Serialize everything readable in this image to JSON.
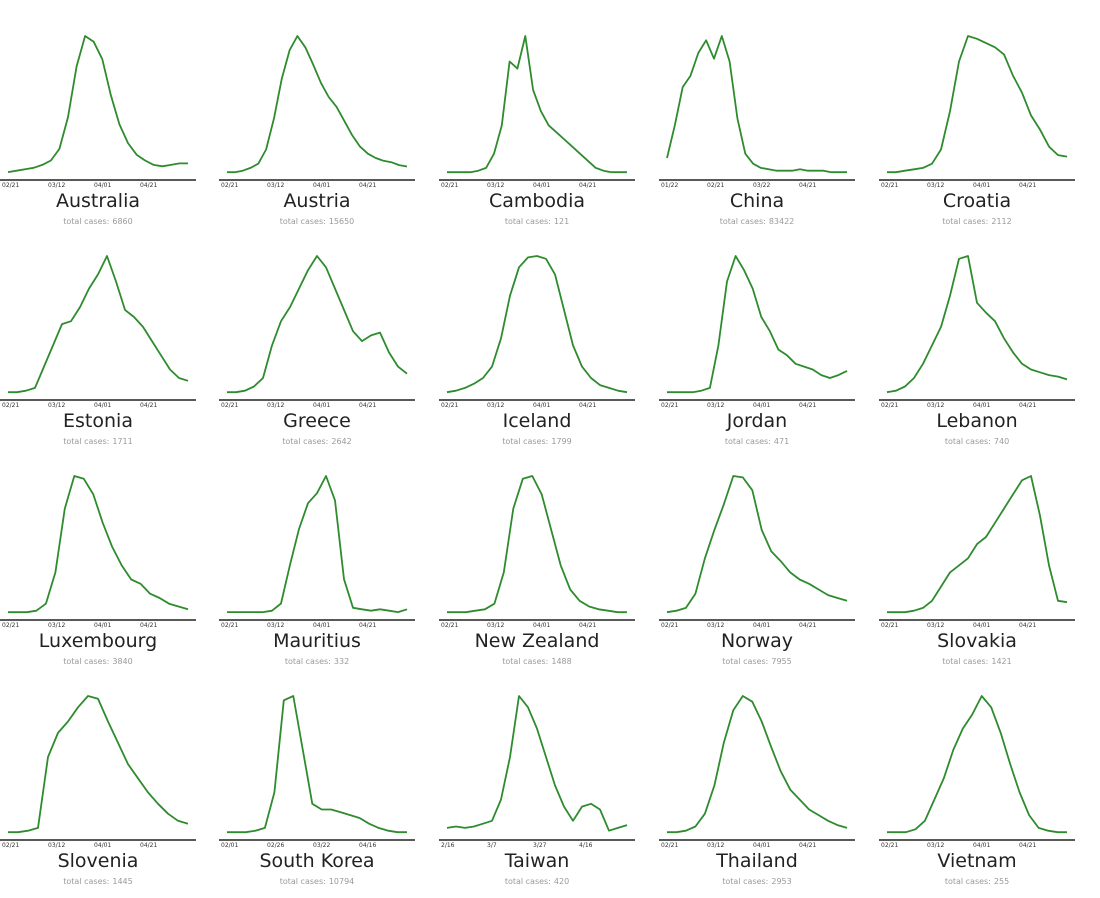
{
  "total_label": "total cases:",
  "line_color": "#2e8b2e",
  "chart_data": [
    {
      "type": "line",
      "country": "Australia",
      "total_cases": "6860",
      "ticks": [
        "02/21",
        "03/12",
        "04/01",
        "04/21"
      ],
      "y": [
        2,
        3,
        4,
        5,
        7,
        10,
        18,
        40,
        75,
        96,
        92,
        80,
        55,
        35,
        22,
        14,
        10,
        7,
        6,
        7,
        8,
        8
      ]
    },
    {
      "type": "line",
      "country": "Austria",
      "total_cases": "15650",
      "ticks": [
        "02/21",
        "03/12",
        "04/01",
        "04/21"
      ],
      "y": [
        2,
        2,
        3,
        5,
        8,
        18,
        40,
        68,
        88,
        98,
        90,
        78,
        65,
        55,
        48,
        38,
        28,
        20,
        15,
        12,
        10,
        9,
        7,
        6
      ]
    },
    {
      "type": "line",
      "country": "Cambodia",
      "total_cases": "121",
      "ticks": [
        "02/21",
        "03/12",
        "04/01",
        "04/21"
      ],
      "y": [
        2,
        2,
        2,
        2,
        3,
        5,
        15,
        35,
        80,
        75,
        98,
        60,
        45,
        35,
        30,
        25,
        20,
        15,
        10,
        5,
        3,
        2,
        2,
        2
      ]
    },
    {
      "type": "line",
      "country": "China",
      "total_cases": "83422",
      "ticks": [
        "01/22",
        "02/21",
        "03/22",
        "04/21"
      ],
      "y": [
        12,
        35,
        62,
        70,
        86,
        95,
        82,
        98,
        80,
        40,
        15,
        8,
        5,
        4,
        3,
        3,
        3,
        4,
        3,
        3,
        3,
        2,
        2,
        2
      ]
    },
    {
      "type": "line",
      "country": "Croatia",
      "total_cases": "2112",
      "ticks": [
        "02/21",
        "03/12",
        "04/01",
        "04/21"
      ],
      "y": [
        2,
        2,
        3,
        4,
        5,
        8,
        18,
        45,
        80,
        98,
        96,
        93,
        90,
        85,
        70,
        58,
        42,
        32,
        20,
        14,
        13
      ]
    },
    {
      "type": "line",
      "country": "Estonia",
      "total_cases": "1711",
      "ticks": [
        "02/21",
        "03/12",
        "04/01",
        "04/21"
      ],
      "y": [
        2,
        2,
        3,
        5,
        20,
        35,
        50,
        52,
        62,
        75,
        85,
        98,
        80,
        60,
        55,
        48,
        38,
        28,
        18,
        12,
        10
      ]
    },
    {
      "type": "line",
      "country": "Greece",
      "total_cases": "2642",
      "ticks": [
        "02/21",
        "03/12",
        "04/01",
        "04/21"
      ],
      "y": [
        2,
        2,
        3,
        6,
        12,
        35,
        52,
        62,
        75,
        88,
        98,
        90,
        75,
        60,
        45,
        38,
        42,
        44,
        30,
        20,
        15
      ]
    },
    {
      "type": "line",
      "country": "Iceland",
      "total_cases": "1799",
      "ticks": [
        "02/21",
        "03/12",
        "04/01",
        "04/21"
      ],
      "y": [
        2,
        3,
        5,
        8,
        12,
        20,
        40,
        70,
        90,
        97,
        98,
        96,
        85,
        60,
        35,
        20,
        12,
        7,
        5,
        3,
        2
      ]
    },
    {
      "type": "line",
      "country": "Jordan",
      "total_cases": "471",
      "ticks": [
        "02/21",
        "03/12",
        "04/01",
        "04/21"
      ],
      "y": [
        2,
        2,
        2,
        2,
        3,
        5,
        35,
        80,
        98,
        88,
        75,
        55,
        45,
        32,
        28,
        22,
        20,
        18,
        14,
        12,
        14,
        17
      ]
    },
    {
      "type": "line",
      "country": "Lebanon",
      "total_cases": "740",
      "ticks": [
        "02/21",
        "03/12",
        "04/01",
        "04/21"
      ],
      "y": [
        2,
        3,
        6,
        12,
        22,
        35,
        48,
        70,
        96,
        98,
        65,
        58,
        52,
        40,
        30,
        22,
        18,
        16,
        14,
        13,
        11
      ]
    },
    {
      "type": "line",
      "country": "Luxembourg",
      "total_cases": "3840",
      "ticks": [
        "02/21",
        "03/12",
        "04/01",
        "04/21"
      ],
      "y": [
        2,
        2,
        2,
        3,
        8,
        30,
        75,
        98,
        96,
        85,
        65,
        48,
        35,
        25,
        22,
        15,
        12,
        8,
        6,
        4
      ]
    },
    {
      "type": "line",
      "country": "Mauritius",
      "total_cases": "332",
      "ticks": [
        "02/21",
        "03/12",
        "04/01",
        "04/21"
      ],
      "y": [
        2,
        2,
        2,
        2,
        2,
        3,
        8,
        35,
        60,
        78,
        85,
        97,
        80,
        25,
        5,
        4,
        3,
        4,
        3,
        2,
        4
      ]
    },
    {
      "type": "line",
      "country": "New Zealand",
      "total_cases": "1488",
      "ticks": [
        "02/21",
        "03/12",
        "04/01",
        "04/21"
      ],
      "y": [
        2,
        2,
        2,
        3,
        4,
        8,
        30,
        75,
        96,
        98,
        85,
        60,
        35,
        18,
        10,
        6,
        4,
        3,
        2,
        2
      ]
    },
    {
      "type": "line",
      "country": "Norway",
      "total_cases": "7955",
      "ticks": [
        "02/21",
        "03/12",
        "04/01",
        "04/21"
      ],
      "y": [
        2,
        3,
        5,
        15,
        40,
        60,
        78,
        98,
        97,
        88,
        60,
        45,
        38,
        30,
        25,
        22,
        18,
        14,
        12,
        10
      ]
    },
    {
      "type": "line",
      "country": "Slovakia",
      "total_cases": "1421",
      "ticks": [
        "02/21",
        "03/12",
        "04/01",
        "04/21"
      ],
      "y": [
        2,
        2,
        2,
        3,
        5,
        10,
        20,
        30,
        35,
        40,
        50,
        55,
        65,
        75,
        85,
        95,
        98,
        70,
        35,
        10,
        9
      ]
    },
    {
      "type": "line",
      "country": "Slovenia",
      "total_cases": "1445",
      "ticks": [
        "02/21",
        "03/12",
        "04/01",
        "04/21"
      ],
      "y": [
        2,
        2,
        3,
        5,
        55,
        72,
        80,
        90,
        98,
        96,
        80,
        65,
        50,
        40,
        30,
        22,
        15,
        10,
        8
      ]
    },
    {
      "type": "line",
      "country": "South Korea",
      "total_cases": "10794",
      "ticks": [
        "02/01",
        "02/26",
        "03/22",
        "04/16"
      ],
      "y": [
        2,
        2,
        2,
        3,
        5,
        30,
        95,
        98,
        60,
        22,
        18,
        18,
        16,
        14,
        12,
        8,
        5,
        3,
        2,
        2
      ]
    },
    {
      "type": "line",
      "country": "Taiwan",
      "total_cases": "420",
      "ticks": [
        "2/16",
        "3/7",
        "3/27",
        "4/16"
      ],
      "y": [
        5,
        6,
        5,
        6,
        8,
        10,
        25,
        55,
        98,
        90,
        75,
        55,
        35,
        20,
        10,
        20,
        22,
        18,
        3,
        5,
        7
      ]
    },
    {
      "type": "line",
      "country": "Thailand",
      "total_cases": "2953",
      "ticks": [
        "02/21",
        "03/12",
        "04/01",
        "04/21"
      ],
      "y": [
        2,
        2,
        3,
        6,
        15,
        35,
        65,
        88,
        98,
        94,
        80,
        62,
        45,
        32,
        25,
        18,
        14,
        10,
        7,
        5
      ]
    },
    {
      "type": "line",
      "country": "Vietnam",
      "total_cases": "255",
      "ticks": [
        "02/21",
        "03/12",
        "04/01",
        "04/21"
      ],
      "y": [
        2,
        2,
        2,
        4,
        10,
        25,
        40,
        60,
        75,
        85,
        98,
        90,
        72,
        50,
        30,
        14,
        5,
        3,
        2,
        2
      ]
    }
  ]
}
